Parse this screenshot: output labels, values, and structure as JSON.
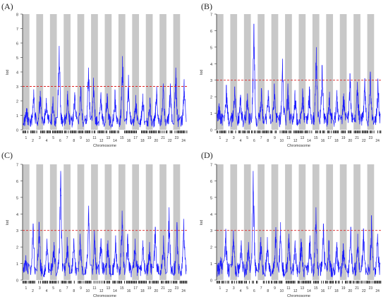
{
  "figure": {
    "panels": [
      {
        "label": "(A)",
        "ylabel": "lod",
        "xlabel": "Chromosome",
        "threshold": 3.0,
        "ymax": 8,
        "yticks": [
          "0",
          "1",
          "2",
          "3",
          "4",
          "5",
          "6",
          "7",
          "8"
        ],
        "chromosome_labels": [
          "1",
          "2",
          "3",
          "4",
          "5",
          "6",
          "7",
          "8",
          "9",
          "10",
          "11",
          "12",
          "13",
          "14",
          "15",
          "16",
          "17",
          "18",
          "19",
          "20",
          "21",
          "22",
          "23",
          "24"
        ],
        "peaks": [
          1.5,
          2.8,
          2.7,
          2.2,
          2.3,
          5.8,
          2.7,
          2.6,
          3.0,
          4.3,
          3.6,
          2.6,
          2.5,
          2.7,
          5.1,
          3.8,
          2.4,
          2.5,
          2.2,
          3.0,
          3.2,
          3.2,
          4.3,
          3.5
        ]
      },
      {
        "label": "(B)",
        "ylabel": "lod",
        "xlabel": "Chromosome",
        "threshold": 3.0,
        "ymax": 7,
        "yticks": [
          "0",
          "1",
          "2",
          "3",
          "4",
          "5",
          "6",
          "7"
        ],
        "chromosome_labels": [
          "1",
          "2",
          "3",
          "4",
          "5",
          "6",
          "7",
          "8",
          "9",
          "10",
          "11",
          "12",
          "13",
          "14",
          "15",
          "16",
          "17",
          "18",
          "19",
          "20",
          "21",
          "22",
          "23",
          "24"
        ],
        "peaks": [
          1.6,
          2.7,
          2.6,
          2.1,
          2.2,
          6.4,
          2.5,
          2.4,
          2.8,
          4.3,
          2.8,
          2.4,
          2.5,
          2.6,
          5.0,
          3.9,
          2.3,
          2.4,
          2.2,
          3.4,
          2.9,
          3.1,
          3.5,
          3.1
        ]
      },
      {
        "label": "(C)",
        "ylabel": "lod",
        "xlabel": "Chromosome",
        "threshold": 3.0,
        "ymax": 7,
        "yticks": [
          "0",
          "1",
          "2",
          "3",
          "4",
          "5",
          "6",
          "7"
        ],
        "chromosome_labels": [
          "1",
          "2",
          "3",
          "4",
          "5",
          "6",
          "7",
          "8",
          "9",
          "10",
          "11",
          "12",
          "13",
          "14",
          "15",
          "16",
          "17",
          "18",
          "19",
          "20",
          "21",
          "22",
          "23",
          "24"
        ],
        "peaks": [
          1.5,
          3.4,
          3.5,
          2.5,
          2.3,
          6.6,
          2.6,
          2.5,
          2.8,
          4.5,
          3.0,
          2.5,
          2.4,
          2.7,
          4.2,
          2.8,
          2.5,
          2.4,
          2.3,
          3.2,
          2.7,
          4.4,
          3.5,
          3.7
        ]
      },
      {
        "label": "(D)",
        "ylabel": "lod",
        "xlabel": "Chromosome",
        "threshold": 3.0,
        "ymax": 7,
        "yticks": [
          "0",
          "1",
          "2",
          "3",
          "4",
          "5",
          "6",
          "7"
        ],
        "chromosome_labels": [
          "1",
          "2",
          "3",
          "4",
          "5",
          "6",
          "7",
          "8",
          "9",
          "10",
          "11",
          "12",
          "13",
          "14",
          "15",
          "16",
          "17",
          "18",
          "19",
          "20",
          "21",
          "22",
          "23",
          "24"
        ],
        "peaks": [
          1.4,
          3.1,
          3.0,
          2.4,
          2.3,
          6.6,
          2.6,
          2.6,
          3.2,
          3.5,
          2.8,
          2.4,
          2.5,
          2.7,
          4.4,
          3.4,
          2.4,
          2.3,
          2.2,
          3.2,
          2.8,
          3.1,
          3.9,
          2.8
        ]
      }
    ]
  },
  "chart_data": [
    {
      "type": "line",
      "title": "",
      "xlabel": "Chromosome",
      "ylabel": "lod",
      "ylim": [
        0,
        8
      ],
      "threshold": 3.0,
      "categories": [
        "1",
        "2",
        "3",
        "4",
        "5",
        "6",
        "7",
        "8",
        "9",
        "10",
        "11",
        "12",
        "13",
        "14",
        "15",
        "16",
        "17",
        "18",
        "19",
        "20",
        "21",
        "22",
        "23",
        "24"
      ],
      "series": [
        {
          "values": [
            1.5,
            2.8,
            2.7,
            2.2,
            2.3,
            5.8,
            2.7,
            2.6,
            3.0,
            4.3,
            3.6,
            2.6,
            2.5,
            2.7,
            5.1,
            3.8,
            2.4,
            2.5,
            2.2,
            3.0,
            3.2,
            3.2,
            4.3,
            3.5
          ]
        }
      ]
    },
    {
      "type": "line",
      "title": "",
      "xlabel": "Chromosome",
      "ylabel": "lod",
      "ylim": [
        0,
        7
      ],
      "threshold": 3.0,
      "categories": [
        "1",
        "2",
        "3",
        "4",
        "5",
        "6",
        "7",
        "8",
        "9",
        "10",
        "11",
        "12",
        "13",
        "14",
        "15",
        "16",
        "17",
        "18",
        "19",
        "20",
        "21",
        "22",
        "23",
        "24"
      ],
      "series": [
        {
          "values": [
            1.6,
            2.7,
            2.6,
            2.1,
            2.2,
            6.4,
            2.5,
            2.4,
            2.8,
            4.3,
            2.8,
            2.4,
            2.5,
            2.6,
            5.0,
            3.9,
            2.3,
            2.4,
            2.2,
            3.4,
            2.9,
            3.1,
            3.5,
            3.1
          ]
        }
      ]
    },
    {
      "type": "line",
      "title": "",
      "xlabel": "Chromosome",
      "ylabel": "lod",
      "ylim": [
        0,
        7
      ],
      "threshold": 3.0,
      "categories": [
        "1",
        "2",
        "3",
        "4",
        "5",
        "6",
        "7",
        "8",
        "9",
        "10",
        "11",
        "12",
        "13",
        "14",
        "15",
        "16",
        "17",
        "18",
        "19",
        "20",
        "21",
        "22",
        "23",
        "24"
      ],
      "series": [
        {
          "values": [
            1.5,
            3.4,
            3.5,
            2.5,
            2.3,
            6.6,
            2.6,
            2.5,
            2.8,
            4.5,
            3.0,
            2.5,
            2.4,
            2.7,
            4.2,
            2.8,
            2.5,
            2.4,
            2.3,
            3.2,
            2.7,
            4.4,
            3.5,
            3.7
          ]
        }
      ]
    },
    {
      "type": "line",
      "title": "",
      "xlabel": "Chromosome",
      "ylabel": "lod",
      "ylim": [
        0,
        7
      ],
      "threshold": 3.0,
      "categories": [
        "1",
        "2",
        "3",
        "4",
        "5",
        "6",
        "7",
        "8",
        "9",
        "10",
        "11",
        "12",
        "13",
        "14",
        "15",
        "16",
        "17",
        "18",
        "19",
        "20",
        "21",
        "22",
        "23",
        "24"
      ],
      "series": [
        {
          "values": [
            1.4,
            3.1,
            3.0,
            2.4,
            2.3,
            6.6,
            2.6,
            2.6,
            3.2,
            3.5,
            2.8,
            2.4,
            2.5,
            2.7,
            4.4,
            3.4,
            2.4,
            2.3,
            2.2,
            3.2,
            2.8,
            3.1,
            3.9,
            2.8
          ]
        }
      ]
    }
  ],
  "colors": {
    "band": "#c8c8c8",
    "trace": "#1a1aff",
    "threshold": "#dd2222",
    "axis": "#333333"
  }
}
